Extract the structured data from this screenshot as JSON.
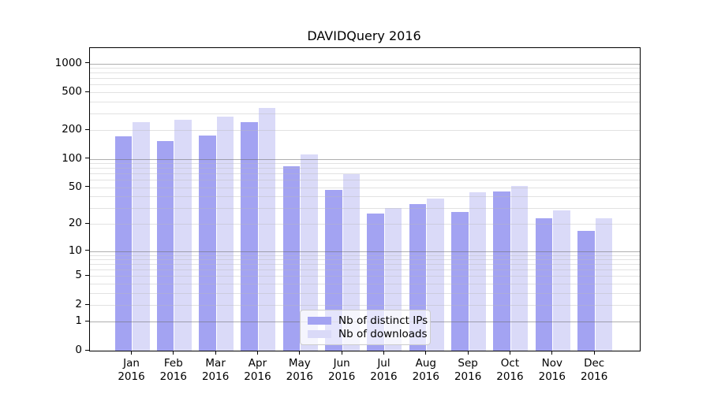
{
  "title": "DAVIDQuery 2016",
  "colors": {
    "bar_ips": "#a3a3f2",
    "bar_downloads": "#dadaf8",
    "grid_major": "rgba(110,110,110,0.55)",
    "grid_minor": "rgba(185,185,185,0.42)",
    "axis": "#000000",
    "text": "#000000",
    "legend_bg": "rgba(255,255,255,0.72)",
    "legend_border": "#cccccc"
  },
  "chart_data": {
    "type": "bar",
    "title": "DAVIDQuery 2016",
    "categories": [
      "Jan",
      "Feb",
      "Mar",
      "Apr",
      "May",
      "Jun",
      "Jul",
      "Aug",
      "Sep",
      "Oct",
      "Nov",
      "Dec"
    ],
    "x_year_label": "2016",
    "series": [
      {
        "name": "Nb of distinct IPs",
        "color_key": "bar_ips",
        "values": [
          174,
          155,
          176,
          243,
          84,
          47,
          26,
          33,
          27,
          45,
          23,
          17
        ]
      },
      {
        "name": "Nb of downloads",
        "color_key": "bar_downloads",
        "values": [
          245,
          258,
          280,
          345,
          112,
          69,
          30,
          38,
          44,
          52,
          28,
          23
        ]
      }
    ],
    "xlabel": "",
    "ylabel": "",
    "yscale": "log1p",
    "ylim": [
      0,
      1450
    ],
    "yticks": [
      0,
      1,
      2,
      5,
      10,
      20,
      50,
      100,
      200,
      500,
      1000
    ],
    "ytick_labels": [
      "0",
      "1",
      "2",
      "5",
      "10",
      "20",
      "50",
      "100",
      "200",
      "500",
      "1000"
    ],
    "grid": "horizontal: major lines at 1,10,100,1000; minor log lines at 2-9, 20-90, 200-900",
    "legend_position": "lower center"
  }
}
